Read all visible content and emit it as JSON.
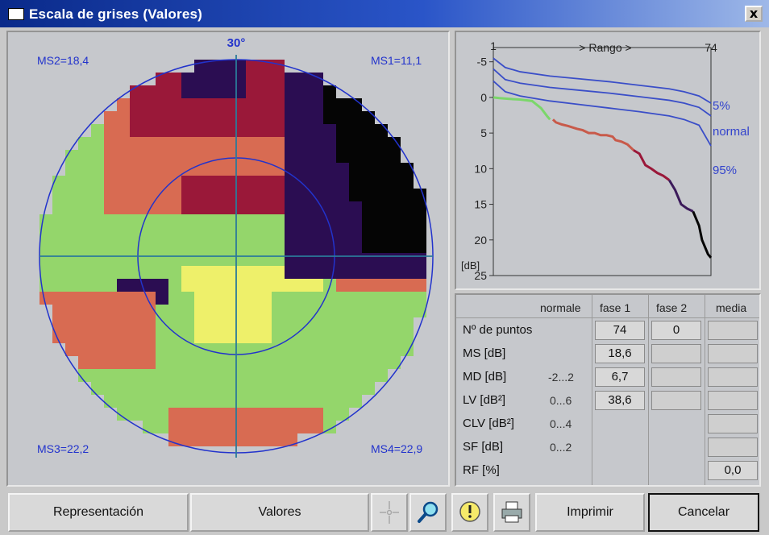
{
  "window": {
    "title": "Escala de grises (Valores)",
    "close_glyph": "x"
  },
  "field": {
    "eccentricity_label": "30°",
    "ms2": "MS2=18,4",
    "ms1": "MS1=11,1",
    "ms3": "MS3=22,2",
    "ms4": "MS4=22,9",
    "colors": {
      "black": "#050505",
      "navy": "#2b0d52",
      "crimson": "#9a1839",
      "salmon": "#d86b52",
      "green": "#94d66b",
      "yellow": "#eef06a",
      "grey": "#c6c8cc",
      "circle": "#2233cc",
      "axis": "#2b7a9a"
    }
  },
  "chart_data": {
    "type": "line",
    "title": "Rango",
    "x_range_label": "> Rango >",
    "x_start_label": "1",
    "x_end_label": "74",
    "xlim": [
      1,
      74
    ],
    "ylabel": "[dB]",
    "ylim": [
      -7,
      25
    ],
    "y_inverted": true,
    "y_ticks": [
      "-5",
      "0",
      "5",
      "10",
      "15",
      "20",
      "25"
    ],
    "series": [
      {
        "name": "5%",
        "x": [
          1,
          5,
          10,
          20,
          30,
          40,
          50,
          60,
          65,
          70,
          74
        ],
        "y": [
          -5.5,
          -4.2,
          -3.6,
          -3.0,
          -2.6,
          -2.2,
          -1.7,
          -1.2,
          -0.8,
          -0.2,
          0.8
        ]
      },
      {
        "name": "normal",
        "x": [
          1,
          5,
          10,
          20,
          30,
          40,
          50,
          60,
          65,
          70,
          74
        ],
        "y": [
          -4.0,
          -2.5,
          -2.0,
          -1.4,
          -1.0,
          -0.6,
          -0.1,
          0.4,
          0.8,
          1.4,
          2.6
        ]
      },
      {
        "name": "95%",
        "x": [
          1,
          5,
          10,
          20,
          30,
          40,
          50,
          60,
          65,
          70,
          74
        ],
        "y": [
          -2.3,
          -0.8,
          -0.2,
          0.5,
          1.0,
          1.5,
          2.0,
          2.6,
          3.1,
          3.9,
          6.8
        ]
      },
      {
        "x": [
          1,
          3,
          6,
          10,
          14,
          17,
          19,
          20,
          21,
          22,
          24,
          26,
          29,
          31,
          33,
          35,
          37,
          39,
          41,
          42,
          44,
          46,
          48,
          50,
          52,
          54,
          56,
          58,
          60,
          62,
          64,
          66,
          68,
          70,
          71,
          72,
          73,
          74
        ],
        "y": [
          0,
          0.1,
          0.2,
          0.3,
          0.5,
          1.5,
          2.6,
          3.1,
          3.1,
          3.5,
          3.8,
          4.0,
          4.4,
          4.6,
          5.0,
          5.0,
          5.3,
          5.3,
          5.5,
          6.0,
          6.2,
          6.6,
          7.4,
          7.9,
          9.5,
          10.0,
          10.6,
          11.0,
          11.6,
          13.0,
          15.0,
          15.6,
          16.0,
          18.0,
          20.0,
          21.0,
          22.0,
          22.5
        ]
      }
    ],
    "series_colors": [
      "#3a4ec8",
      "#3a4ec8",
      "#3a4ec8"
    ],
    "measured_segments": [
      {
        "from": 1,
        "to": 20,
        "color": "#7bd76a"
      },
      {
        "from": 21,
        "to": 48,
        "color": "#c85a4a"
      },
      {
        "from": 48,
        "to": 60,
        "color": "#9a1839"
      },
      {
        "from": 60,
        "to": 68,
        "color": "#3b1a5a"
      },
      {
        "from": 68,
        "to": 74,
        "color": "#050505"
      }
    ],
    "legend_labels": {
      "p5": "5%",
      "normal": "normal",
      "p95": "95%"
    }
  },
  "table": {
    "headers": {
      "normal": "normale",
      "fase1": "fase 1",
      "fase2": "fase 2",
      "media": "media"
    },
    "rows": [
      {
        "label": "Nº de puntos",
        "normal": "",
        "fase1": "74",
        "fase2": "0",
        "media": ""
      },
      {
        "label": "MS [dB]",
        "normal": "",
        "fase1": "18,6",
        "fase2": "",
        "media": ""
      },
      {
        "label": "MD [dB]",
        "normal": "-2...2",
        "fase1": "6,7",
        "fase2": "",
        "media": ""
      },
      {
        "label": "LV [dB²]",
        "normal": "0...6",
        "fase1": "38,6",
        "fase2": "",
        "media": ""
      },
      {
        "label": "CLV [dB²]",
        "normal": "0...4",
        "fase1": "",
        "fase2": "",
        "media": ""
      },
      {
        "label": "SF [dB]",
        "normal": "0...2",
        "fase1": "",
        "fase2": "",
        "media": ""
      },
      {
        "label": "RF [%]",
        "normal": "",
        "fase1": "",
        "fase2": "",
        "media": "0,0"
      }
    ]
  },
  "buttons": {
    "representacion": "Representación",
    "valores": "Valores",
    "crosshair_icon": "crosshair-icon",
    "zoom_icon": "magnifier-icon",
    "info_icon": "info-icon",
    "print_icon": "printer-icon",
    "imprimir": "Imprimir",
    "cancelar": "Cancelar"
  }
}
